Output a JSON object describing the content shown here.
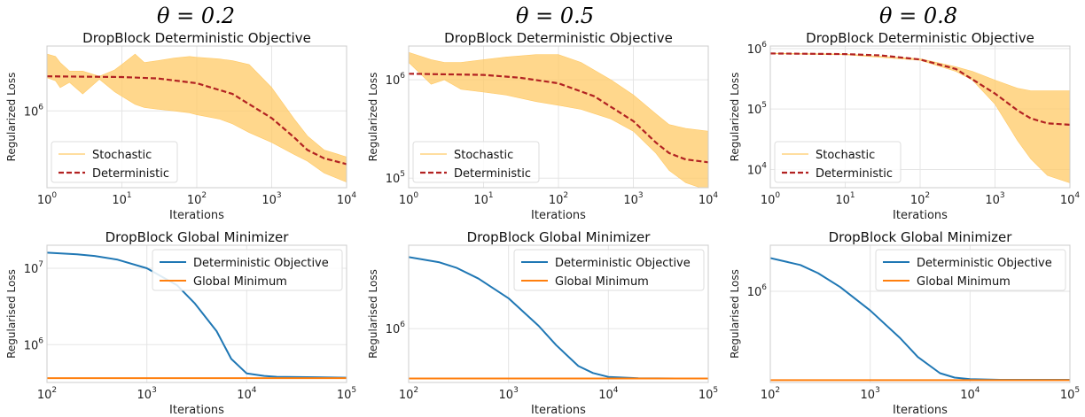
{
  "colors": {
    "stochastic": "#ffc966",
    "deterministic": "#b22222",
    "det_objective": "#1f77b4",
    "global_min": "#ff7f0e",
    "grid": "#e5e5e5"
  },
  "columns": [
    {
      "theta_label": "θ = 0.2"
    },
    {
      "theta_label": "θ = 0.5"
    },
    {
      "theta_label": "θ = 0.8"
    }
  ],
  "chart_data": [
    {
      "type": "line",
      "panel": "top-left",
      "title": "DropBlock Deterministic Objective",
      "xlabel": "Iterations",
      "ylabel": "Regularized Loss",
      "xscale": "log",
      "yscale": "log",
      "xlim": [
        1,
        10000
      ],
      "ylim": [
        120000,
        6000000
      ],
      "xticks": [
        1,
        10,
        100,
        1000,
        10000
      ],
      "xtick_labels": [
        [
          "10",
          "0"
        ],
        [
          "10",
          "1"
        ],
        [
          "10",
          "2"
        ],
        [
          "10",
          "3"
        ],
        [
          "10",
          "4"
        ]
      ],
      "yticks": [
        1000000
      ],
      "ytick_labels": [
        [
          "10",
          "6"
        ]
      ],
      "grid": true,
      "legend": "lower-left",
      "series": [
        {
          "name": "Stochastic",
          "kind": "band",
          "x": [
            1,
            1.3,
            1.5,
            2,
            3,
            5,
            8,
            10,
            15,
            20,
            30,
            50,
            80,
            100,
            200,
            300,
            500,
            1000,
            2000,
            3000,
            5000,
            10000
          ],
          "low": [
            2500000,
            2300000,
            1900000,
            2200000,
            1600000,
            2400000,
            1700000,
            1500000,
            1200000,
            1100000,
            1050000,
            1000000,
            950000,
            900000,
            800000,
            700000,
            550000,
            420000,
            300000,
            250000,
            180000,
            140000
          ],
          "high": [
            4800000,
            4500000,
            3800000,
            3000000,
            3000000,
            2600000,
            3100000,
            3600000,
            4800000,
            3800000,
            4000000,
            4300000,
            4500000,
            4400000,
            4200000,
            4000000,
            3600000,
            1900000,
            800000,
            500000,
            340000,
            280000
          ]
        },
        {
          "name": "Deterministic",
          "kind": "line",
          "x": [
            1,
            10,
            30,
            100,
            300,
            1000,
            2000,
            3000,
            5000,
            10000
          ],
          "y": [
            2600000,
            2550000,
            2450000,
            2150000,
            1600000,
            820000,
            480000,
            340000,
            270000,
            230000
          ]
        }
      ]
    },
    {
      "type": "line",
      "panel": "top-middle",
      "title": "DropBlock Deterministic Objective",
      "xlabel": "Iterations",
      "ylabel": "Regularized Loss",
      "xscale": "log",
      "yscale": "log",
      "xlim": [
        1,
        10000
      ],
      "ylim": [
        80000,
        2200000
      ],
      "xticks": [
        1,
        10,
        100,
        1000,
        10000
      ],
      "xtick_labels": [
        [
          "10",
          "0"
        ],
        [
          "10",
          "1"
        ],
        [
          "10",
          "2"
        ],
        [
          "10",
          "3"
        ],
        [
          "10",
          "4"
        ]
      ],
      "yticks": [
        100000,
        1000000
      ],
      "ytick_labels": [
        [
          "10",
          "5"
        ],
        [
          "10",
          "6"
        ]
      ],
      "grid": true,
      "legend": "lower-left",
      "series": [
        {
          "name": "Stochastic",
          "kind": "band",
          "x": [
            1,
            2,
            3,
            5,
            10,
            20,
            50,
            100,
            200,
            500,
            1000,
            2000,
            3000,
            5000,
            10000
          ],
          "low": [
            1500000,
            900000,
            1000000,
            800000,
            750000,
            700000,
            600000,
            550000,
            500000,
            400000,
            300000,
            180000,
            120000,
            90000,
            75000
          ],
          "high": [
            1900000,
            1600000,
            1500000,
            1500000,
            1600000,
            1700000,
            1800000,
            1800000,
            1500000,
            1000000,
            700000,
            450000,
            350000,
            320000,
            300000
          ]
        },
        {
          "name": "Deterministic",
          "kind": "line",
          "x": [
            1,
            10,
            30,
            100,
            300,
            1000,
            2000,
            3000,
            5000,
            10000
          ],
          "y": [
            1150000,
            1120000,
            1050000,
            920000,
            680000,
            380000,
            230000,
            180000,
            155000,
            145000
          ]
        }
      ]
    },
    {
      "type": "line",
      "panel": "top-right",
      "title": "DropBlock Deterministic Objective",
      "xlabel": "Iterations",
      "ylabel": "Regularized Loss",
      "xscale": "log",
      "yscale": "log",
      "xlim": [
        1,
        10000
      ],
      "ylim": [
        5000,
        1100000
      ],
      "xticks": [
        1,
        10,
        100,
        1000,
        10000
      ],
      "xtick_labels": [
        [
          "10",
          "0"
        ],
        [
          "10",
          "1"
        ],
        [
          "10",
          "2"
        ],
        [
          "10",
          "3"
        ],
        [
          "10",
          "4"
        ]
      ],
      "yticks": [
        10000,
        100000,
        1000000
      ],
      "ytick_labels": [
        [
          "10",
          "4"
        ],
        [
          "10",
          "5"
        ],
        [
          "10",
          "6"
        ]
      ],
      "grid": true,
      "legend": "lower-left",
      "series": [
        {
          "name": "Stochastic",
          "kind": "band",
          "x": [
            1,
            10,
            100,
            300,
            500,
            1000,
            2000,
            3000,
            5000,
            10000
          ],
          "low": [
            820000,
            790000,
            640000,
            420000,
            300000,
            120000,
            30000,
            15000,
            8000,
            6000
          ],
          "high": [
            840000,
            810000,
            680000,
            500000,
            420000,
            300000,
            220000,
            200000,
            200000,
            200000
          ]
        },
        {
          "name": "Deterministic",
          "kind": "line",
          "x": [
            1,
            10,
            30,
            100,
            300,
            1000,
            2000,
            3000,
            5000,
            10000
          ],
          "y": [
            830000,
            810000,
            770000,
            660000,
            460000,
            180000,
            95000,
            70000,
            58000,
            55000
          ]
        }
      ]
    },
    {
      "type": "line",
      "panel": "bottom-left",
      "title": "DropBlock Global Minimizer",
      "xlabel": "Iterations",
      "ylabel": "Regularised Loss",
      "xscale": "log",
      "yscale": "log",
      "xlim": [
        100,
        100000
      ],
      "ylim": [
        320000,
        20000000
      ],
      "xticks": [
        100,
        1000,
        10000,
        100000
      ],
      "xtick_labels": [
        [
          "10",
          "2"
        ],
        [
          "10",
          "3"
        ],
        [
          "10",
          "4"
        ],
        [
          "10",
          "5"
        ]
      ],
      "yticks": [
        1000000,
        10000000
      ],
      "ytick_labels": [
        [
          "10",
          "6"
        ],
        [
          "10",
          "7"
        ]
      ],
      "grid": true,
      "legend": "top-right",
      "series": [
        {
          "name": "Deterministic Objective",
          "kind": "line",
          "x": [
            100,
            200,
            300,
            500,
            1000,
            2000,
            3000,
            5000,
            7000,
            10000,
            15000,
            20000,
            50000,
            100000
          ],
          "y": [
            16000000,
            15200000,
            14500000,
            13000000,
            10000000,
            6000000,
            3500000,
            1500000,
            650000,
            420000,
            390000,
            380000,
            375000,
            370000
          ]
        },
        {
          "name": "Global Minimum",
          "kind": "line",
          "x": [
            100,
            100000
          ],
          "y": [
            365000,
            365000
          ]
        }
      ]
    },
    {
      "type": "line",
      "panel": "bottom-middle",
      "title": "DropBlock Global Minimizer",
      "xlabel": "Iterations",
      "ylabel": "Regularised Loss",
      "xscale": "log",
      "yscale": "log",
      "xlim": [
        100,
        100000
      ],
      "ylim": [
        390000,
        4300000
      ],
      "xticks": [
        100,
        1000,
        10000,
        100000
      ],
      "xtick_labels": [
        [
          "10",
          "2"
        ],
        [
          "10",
          "3"
        ],
        [
          "10",
          "4"
        ],
        [
          "10",
          "5"
        ]
      ],
      "yticks": [
        1000000
      ],
      "ytick_labels": [
        [
          "10",
          "6"
        ]
      ],
      "grid": true,
      "legend": "top-right",
      "series": [
        {
          "name": "Deterministic Objective",
          "kind": "line",
          "x": [
            100,
            200,
            300,
            500,
            1000,
            2000,
            3000,
            5000,
            7000,
            10000,
            20000,
            50000,
            100000
          ],
          "y": [
            3500000,
            3200000,
            2900000,
            2400000,
            1700000,
            1050000,
            750000,
            520000,
            460000,
            430000,
            420000,
            418000,
            418000
          ]
        },
        {
          "name": "Global Minimum",
          "kind": "line",
          "x": [
            100,
            100000
          ],
          "y": [
            418000,
            418000
          ]
        }
      ]
    },
    {
      "type": "line",
      "panel": "bottom-right",
      "title": "DropBlock Global Minimizer",
      "xlabel": "Iterations",
      "ylabel": "Regularised Loss",
      "xscale": "log",
      "yscale": "log",
      "xlim": [
        100,
        100000
      ],
      "ylim": [
        130000,
        2800000
      ],
      "xticks": [
        100,
        1000,
        10000,
        100000
      ],
      "xtick_labels": [
        [
          "10",
          "2"
        ],
        [
          "10",
          "3"
        ],
        [
          "10",
          "4"
        ],
        [
          "10",
          "5"
        ]
      ],
      "yticks": [
        1000000
      ],
      "ytick_labels": [
        [
          "10",
          "6"
        ]
      ],
      "grid": true,
      "legend": "top-right",
      "series": [
        {
          "name": "Deterministic Objective",
          "kind": "line",
          "x": [
            100,
            200,
            300,
            500,
            1000,
            2000,
            3000,
            5000,
            7000,
            10000,
            20000,
            50000,
            100000
          ],
          "y": [
            2100000,
            1800000,
            1500000,
            1100000,
            650000,
            350000,
            230000,
            160000,
            145000,
            140000,
            138000,
            138000,
            138000
          ]
        },
        {
          "name": "Global Minimum",
          "kind": "line",
          "x": [
            100,
            100000
          ],
          "y": [
            137000,
            137000
          ]
        }
      ]
    }
  ]
}
